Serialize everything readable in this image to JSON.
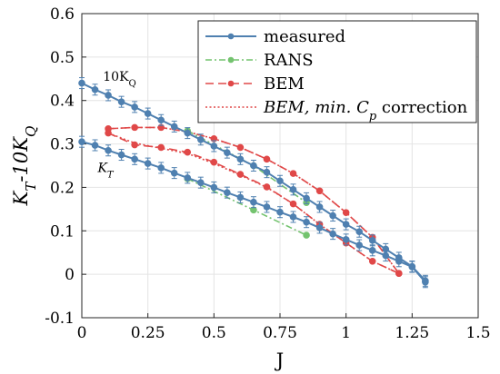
{
  "chart_data": {
    "type": "line",
    "xlabel": "J",
    "ylabel": "K_T-10K_Q",
    "xlim": [
      0,
      1.5
    ],
    "ylim": [
      -0.1,
      0.6
    ],
    "xticks": [
      "0",
      "0.25",
      "0.5",
      "0.75",
      "1",
      "1.25",
      "1.5"
    ],
    "xtick_values": [
      0,
      0.25,
      0.5,
      0.75,
      1,
      1.25,
      1.5
    ],
    "yticks": [
      "-0.1",
      "0",
      "0.1",
      "0.2",
      "0.3",
      "0.4",
      "0.5",
      "0.6"
    ],
    "ytick_values": [
      -0.1,
      0,
      0.1,
      0.2,
      0.3,
      0.4,
      0.5,
      0.6
    ],
    "grid": true,
    "legend_position": "top-right",
    "annotations": [
      {
        "text": "10K_Q",
        "x": 0.08,
        "y": 0.445
      },
      {
        "text": "K_T",
        "x": 0.06,
        "y": 0.235
      }
    ],
    "series": [
      {
        "name": "measured",
        "color": "#4f80b0",
        "style": "solid",
        "marker": "circle",
        "error_bars": true,
        "curves": [
          {
            "x": [
              0,
              0.05,
              0.1,
              0.15,
              0.2,
              0.25,
              0.3,
              0.35,
              0.4,
              0.45,
              0.5,
              0.55,
              0.6,
              0.65,
              0.7,
              0.75,
              0.8,
              0.85,
              0.9,
              0.95,
              1.0,
              1.05,
              1.1,
              1.15,
              1.2,
              1.25,
              1.3
            ],
            "y": [
              0.44,
              0.425,
              0.412,
              0.397,
              0.385,
              0.37,
              0.355,
              0.34,
              0.325,
              0.31,
              0.295,
              0.28,
              0.265,
              0.25,
              0.235,
              0.215,
              0.195,
              0.175,
              0.155,
              0.135,
              0.115,
              0.098,
              0.078,
              0.058,
              0.038,
              0.018,
              -0.015
            ]
          },
          {
            "x": [
              0,
              0.05,
              0.1,
              0.15,
              0.2,
              0.25,
              0.3,
              0.35,
              0.4,
              0.45,
              0.5,
              0.55,
              0.6,
              0.65,
              0.7,
              0.75,
              0.8,
              0.85,
              0.9,
              0.95,
              1.0,
              1.05,
              1.1,
              1.15,
              1.2,
              1.25,
              1.3
            ],
            "y": [
              0.305,
              0.297,
              0.285,
              0.275,
              0.265,
              0.255,
              0.245,
              0.233,
              0.222,
              0.211,
              0.2,
              0.188,
              0.177,
              0.166,
              0.155,
              0.143,
              0.132,
              0.12,
              0.107,
              0.093,
              0.08,
              0.067,
              0.055,
              0.043,
              0.03,
              0.017,
              -0.018
            ]
          }
        ]
      },
      {
        "name": "RANS",
        "color": "#74c36f",
        "style": "dashdot",
        "marker": "circle",
        "curves": [
          {
            "x": [
              0.4,
              0.65,
              0.85
            ],
            "y": [
              0.33,
              0.25,
              0.165
            ]
          },
          {
            "x": [
              0.4,
              0.65,
              0.85
            ],
            "y": [
              0.22,
              0.148,
              0.09
            ]
          }
        ]
      },
      {
        "name": "BEM",
        "color": "#e04848",
        "style": "dashed",
        "marker": "circle",
        "curves": [
          {
            "x": [
              0.1,
              0.2,
              0.3,
              0.4,
              0.5,
              0.6,
              0.7,
              0.8,
              0.9,
              1.0,
              1.1,
              1.2
            ],
            "y": [
              0.335,
              0.338,
              0.338,
              0.328,
              0.312,
              0.292,
              0.265,
              0.232,
              0.192,
              0.142,
              0.085,
              0.002
            ]
          },
          {
            "x": [
              0.1,
              0.2,
              0.3,
              0.4,
              0.5,
              0.6,
              0.7,
              0.8,
              0.9,
              1.0,
              1.1,
              1.2
            ],
            "y": [
              0.325,
              0.298,
              0.292,
              0.281,
              0.258,
              0.23,
              0.201,
              0.162,
              0.115,
              0.072,
              0.03,
              0.002
            ]
          }
        ]
      },
      {
        "name": "BEM, min. C_p correction",
        "color": "#e04848",
        "style": "dotted",
        "marker": "none",
        "curves": [
          {
            "x": [
              0.1,
              0.2,
              0.3,
              0.4,
              0.5,
              0.6,
              0.7,
              0.8,
              0.9,
              1.0,
              1.1,
              1.2
            ],
            "y": [
              0.335,
              0.338,
              0.338,
              0.328,
              0.312,
              0.292,
              0.265,
              0.232,
              0.192,
              0.142,
              0.085,
              0.002
            ]
          },
          {
            "x": [
              0.1,
              0.2,
              0.3,
              0.4,
              0.5,
              0.6,
              0.7,
              0.8,
              0.9,
              1.0,
              1.1,
              1.2
            ],
            "y": [
              0.325,
              0.302,
              0.29,
              0.278,
              0.255,
              0.228,
              0.2,
              0.162,
              0.115,
              0.072,
              0.03,
              0.002
            ]
          }
        ]
      }
    ]
  }
}
